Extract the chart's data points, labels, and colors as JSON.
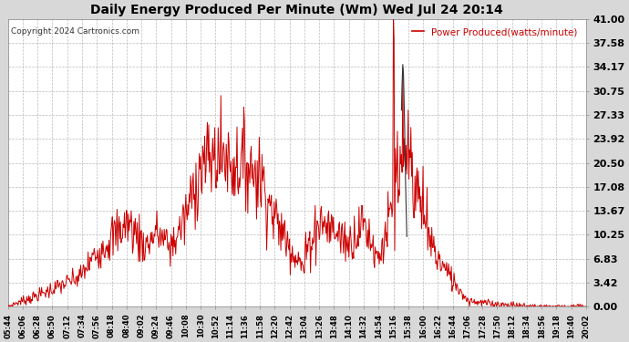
{
  "title": "Daily Energy Produced Per Minute (Wm) Wed Jul 24 20:14",
  "copyright": "Copyright 2024 Cartronics.com",
  "legend_label": "Power Produced(watts/minute)",
  "line_color": "#cc0000",
  "dark_line_color": "#333333",
  "bg_color": "#d8d8d8",
  "plot_bg_color": "#ffffff",
  "grid_color": "#aaaaaa",
  "title_color": "#000000",
  "copyright_color": "#333333",
  "legend_color": "#cc0000",
  "ylim": [
    0.0,
    41.0
  ],
  "yticks": [
    0.0,
    3.42,
    6.83,
    10.25,
    13.67,
    17.08,
    20.5,
    23.92,
    27.33,
    30.75,
    34.17,
    37.58,
    41.0
  ],
  "xlabel_times": [
    "05:44",
    "06:06",
    "06:28",
    "06:50",
    "07:12",
    "07:34",
    "07:56",
    "08:18",
    "08:40",
    "09:02",
    "09:24",
    "09:46",
    "10:08",
    "10:30",
    "10:52",
    "11:14",
    "11:36",
    "11:58",
    "12:20",
    "12:42",
    "13:04",
    "13:26",
    "13:48",
    "14:10",
    "14:32",
    "14:54",
    "15:16",
    "15:38",
    "16:00",
    "16:22",
    "16:44",
    "17:06",
    "17:28",
    "17:50",
    "18:12",
    "18:34",
    "18:56",
    "19:18",
    "19:40",
    "20:02"
  ]
}
